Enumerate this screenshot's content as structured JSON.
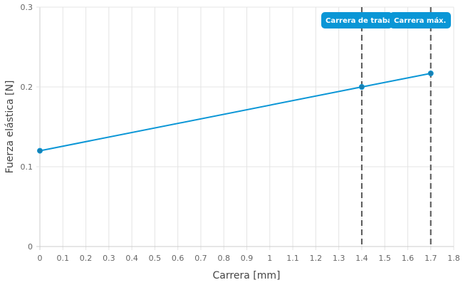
{
  "chart_data": {
    "type": "line",
    "xlabel": "Carrera [mm]",
    "ylabel": "Fuerza elástica [N]",
    "xlim": [
      0,
      1.8
    ],
    "ylim": [
      0,
      0.3
    ],
    "x_ticks": [
      "0",
      "0.1",
      "0.2",
      "0.3",
      "0.4",
      "0.5",
      "0.6",
      "0.7",
      "0.8",
      "0.9",
      "1",
      "1.1",
      "1.2",
      "1.3",
      "1.4",
      "1.5",
      "1.6",
      "1.7",
      "1.8"
    ],
    "y_ticks": [
      "0",
      "0.1",
      "0.2",
      "0.3"
    ],
    "grid": true,
    "series": [
      {
        "x": [
          0,
          1.4,
          1.7
        ],
        "y": [
          0.12,
          0.2,
          0.217
        ],
        "color": "#0a96d6"
      }
    ],
    "annotations": [
      {
        "type": "vertical-line",
        "x": 1.4,
        "label": "Carrera de traba",
        "label_shown": "Carrera de trab",
        "style": "dashed",
        "color": "#555555"
      },
      {
        "type": "vertical-line",
        "x": 1.7,
        "label": "Carrera máx.",
        "style": "dashed",
        "color": "#555555"
      }
    ],
    "label_background": "#0a96d6"
  }
}
